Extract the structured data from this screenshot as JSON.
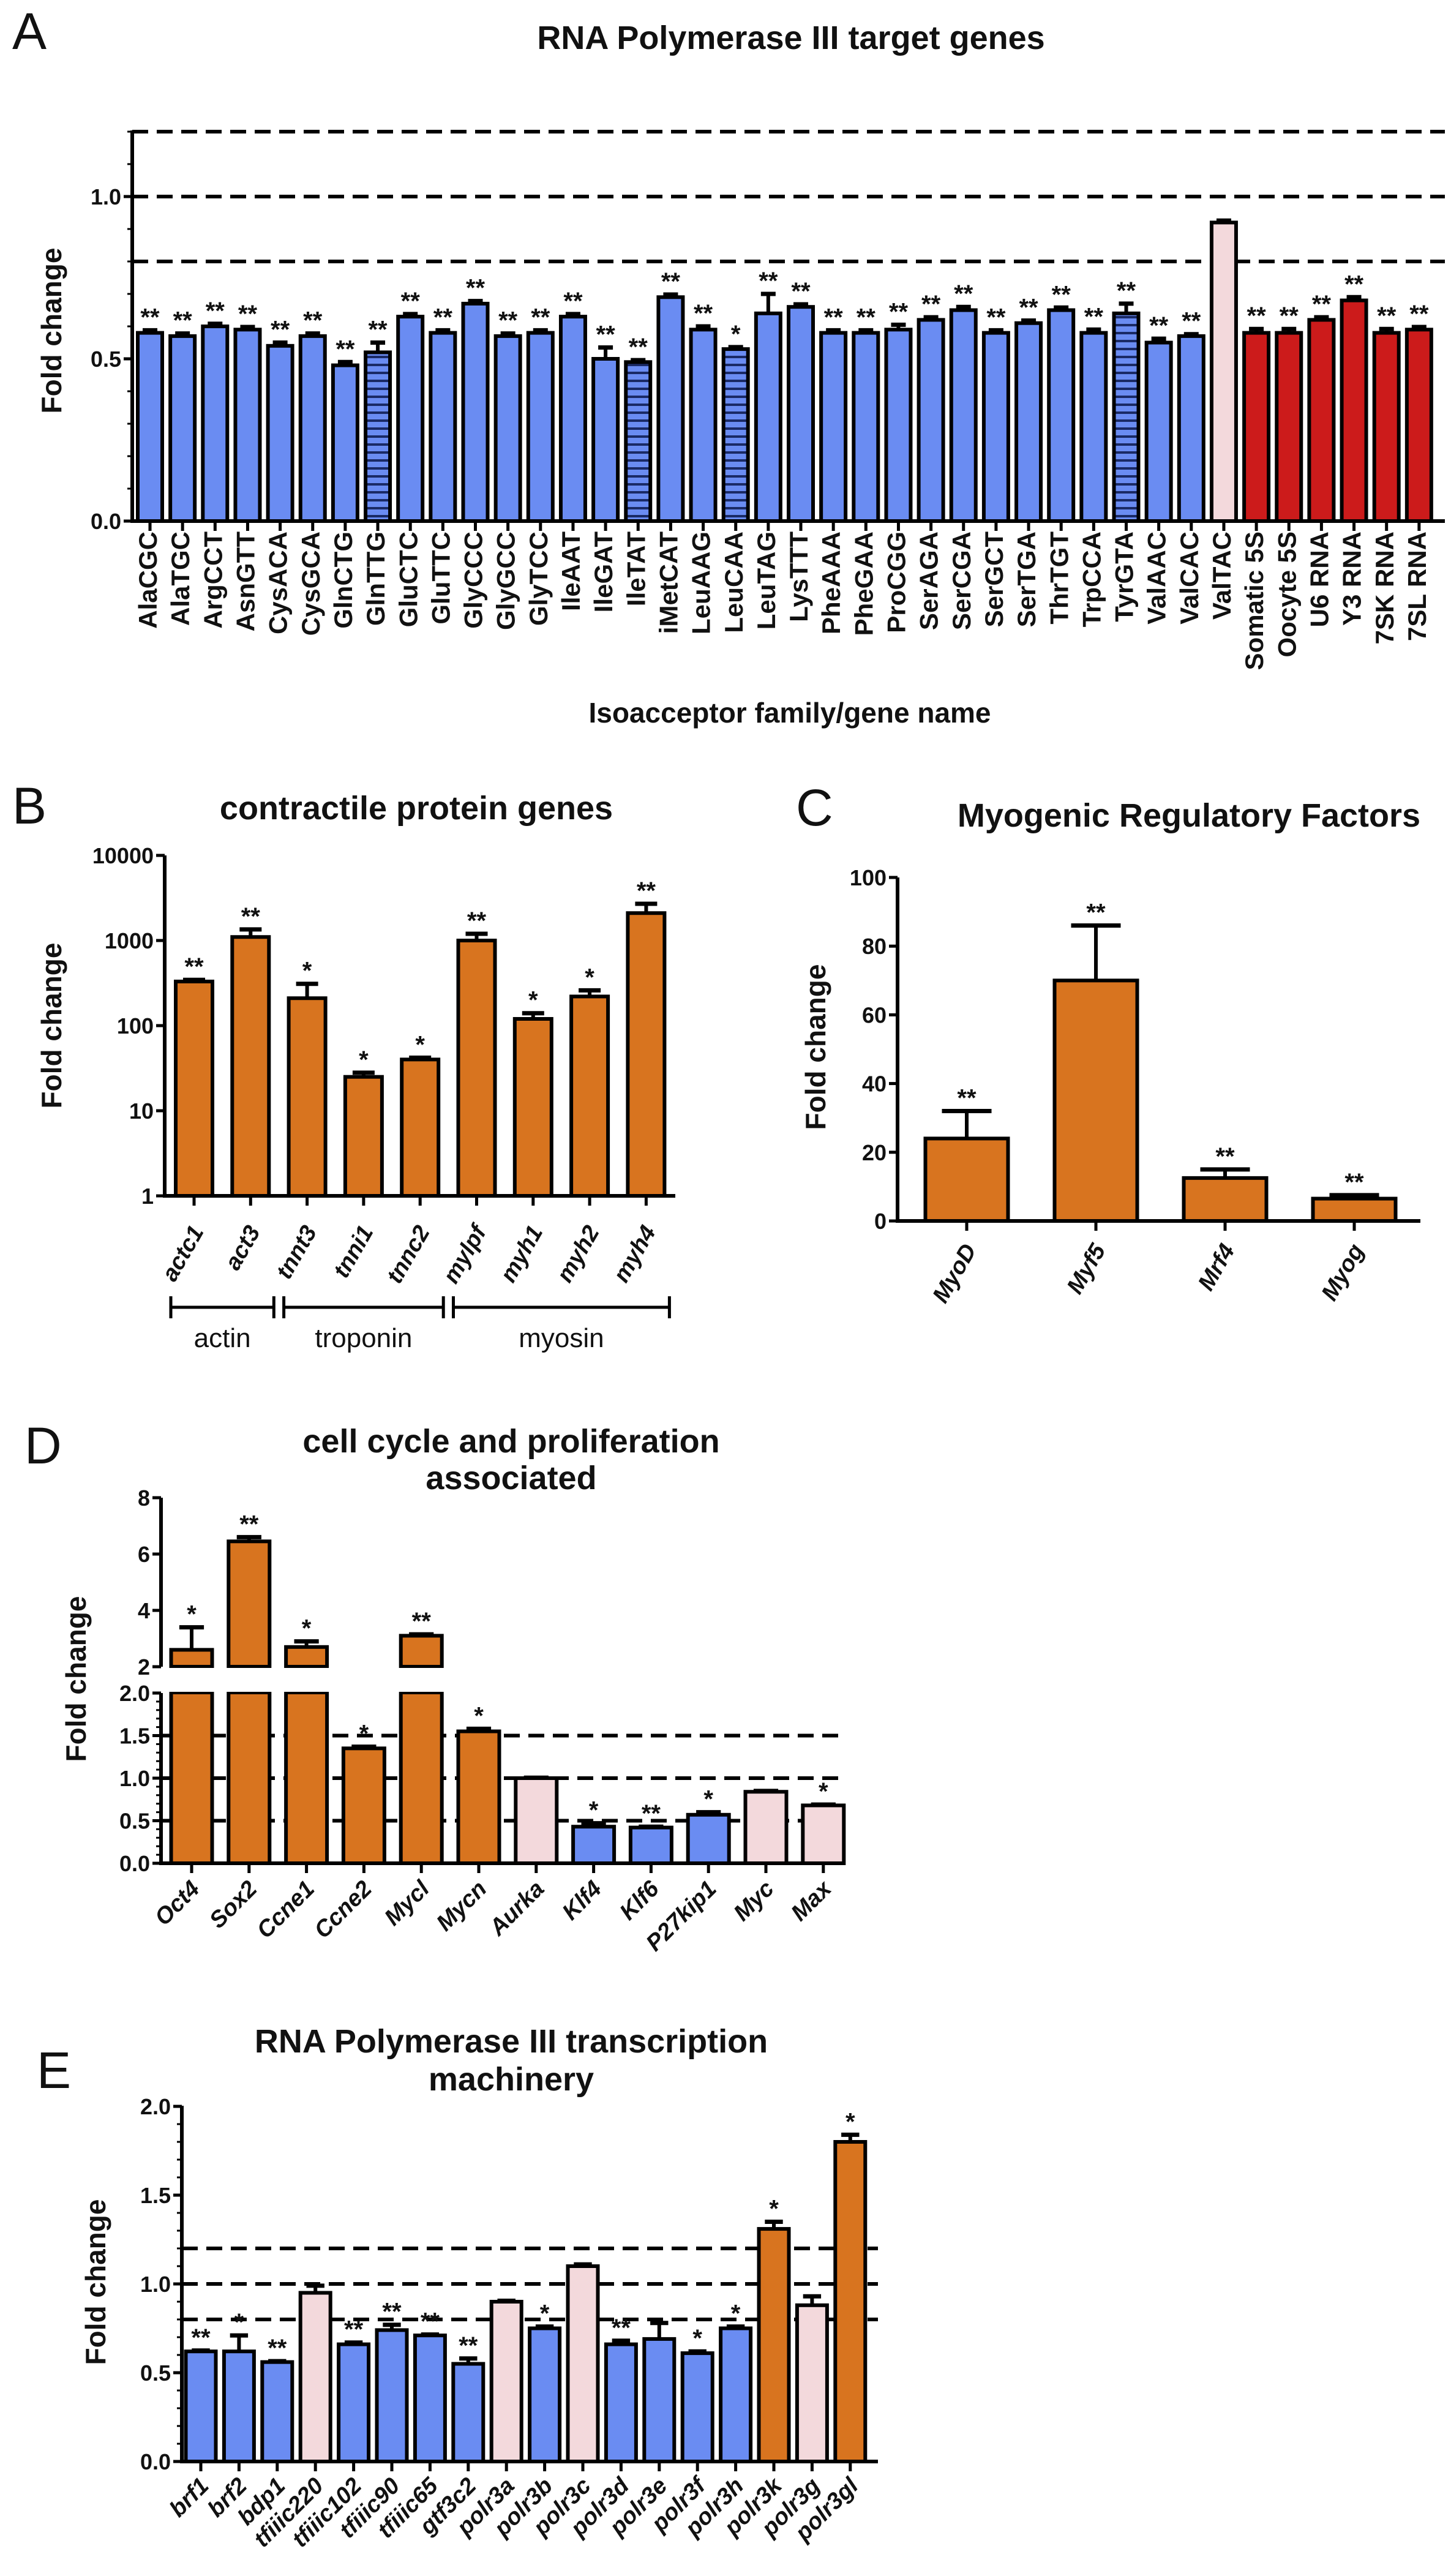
{
  "colors": {
    "blue": "#6a8cf2",
    "pink": "#f3d9dc",
    "red": "#cc1b1b",
    "orange": "#d8741f",
    "axis": "#000000"
  },
  "chart_data": [
    {
      "panel": "A",
      "type": "bar",
      "title": "RNA Polymerase III target genes",
      "xlabel": "Isoacceptor family/gene name",
      "ylabel": "Fold change",
      "yscale": "linear",
      "ylim": [
        0,
        1.2
      ],
      "yticks": [
        "0.0",
        "0.5",
        "1.0"
      ],
      "reference_lines": [
        0.8,
        1.0,
        1.2
      ],
      "grid": false,
      "categories": [
        "AlaCGC",
        "AlaTGC",
        "ArgCCT",
        "AsnGTT",
        "CysACA",
        "CysGCA",
        "GlnCTG",
        "GlnTTG",
        "GluCTC",
        "GluTTC",
        "GlyCCC",
        "GlyGCC",
        "GlyTCC",
        "IleAAT",
        "IleGAT",
        "IleTAT",
        "iMetCAT",
        "LeuAAG",
        "LeuCAA",
        "LeuTAG",
        "LysTTT",
        "PheAAA",
        "PheGAA",
        "ProCGG",
        "SerAGA",
        "SerCGA",
        "SerGCT",
        "SerTGA",
        "ThrTGT",
        "TrpCCA",
        "TyrGTA",
        "ValAAC",
        "ValCAC",
        "ValTAC",
        "Somatic 5S",
        "Oocyte 5S",
        "U6 RNA",
        "Y3 RNA",
        "7SK RNA",
        "7SL RNA"
      ],
      "values": [
        0.58,
        0.57,
        0.6,
        0.59,
        0.54,
        0.57,
        0.48,
        0.52,
        0.63,
        0.58,
        0.67,
        0.57,
        0.58,
        0.63,
        0.5,
        0.49,
        0.69,
        0.59,
        0.53,
        0.64,
        0.66,
        0.58,
        0.58,
        0.59,
        0.62,
        0.65,
        0.58,
        0.61,
        0.65,
        0.58,
        0.64,
        0.55,
        0.57,
        0.92,
        0.58,
        0.58,
        0.62,
        0.68,
        0.58,
        0.59
      ],
      "errors": [
        0.008,
        0.008,
        0.008,
        0.008,
        0.01,
        0.008,
        0.01,
        0.03,
        0.008,
        0.008,
        0.008,
        0.008,
        0.008,
        0.008,
        0.035,
        0.006,
        0.008,
        0.01,
        0.006,
        0.06,
        0.008,
        0.008,
        0.008,
        0.015,
        0.008,
        0.01,
        0.008,
        0.008,
        0.008,
        0.01,
        0.03,
        0.012,
        0.006,
        0.006,
        0.012,
        0.012,
        0.008,
        0.01,
        0.012,
        0.008
      ],
      "significance": [
        "**",
        "**",
        "**",
        "**",
        "**",
        "**",
        "**",
        "**",
        "**",
        "**",
        "**",
        "**",
        "**",
        "**",
        "**",
        "**",
        "**",
        "**",
        "*",
        "**",
        "**",
        "**",
        "**",
        "**",
        "**",
        "**",
        "**",
        "**",
        "**",
        "**",
        "**",
        "**",
        "**",
        "",
        "**",
        "**",
        "**",
        "**",
        "**",
        "**"
      ],
      "bar_colors": [
        "blue",
        "blue",
        "blue",
        "blue",
        "blue",
        "blue",
        "blue",
        "blue",
        "blue",
        "blue",
        "blue",
        "blue",
        "blue",
        "blue",
        "blue",
        "blue",
        "blue",
        "blue",
        "blue",
        "blue",
        "blue",
        "blue",
        "blue",
        "blue",
        "blue",
        "blue",
        "blue",
        "blue",
        "blue",
        "blue",
        "blue",
        "blue",
        "blue",
        "pink",
        "red",
        "red",
        "red",
        "red",
        "red",
        "red"
      ],
      "striped": [
        false,
        false,
        false,
        false,
        false,
        false,
        false,
        true,
        false,
        false,
        false,
        false,
        false,
        false,
        false,
        true,
        false,
        false,
        true,
        false,
        false,
        false,
        false,
        false,
        false,
        false,
        false,
        false,
        false,
        false,
        true,
        false,
        false,
        false,
        false,
        false,
        false,
        false,
        false,
        false
      ]
    },
    {
      "panel": "B",
      "type": "bar",
      "title": "contractile protein genes",
      "xlabel": "",
      "ylabel": "Fold change",
      "yscale": "log",
      "ylim": [
        1,
        10000
      ],
      "yticks": [
        "1",
        "10",
        "100",
        "1000",
        "10000"
      ],
      "reference_lines": [],
      "categories": [
        "actc1",
        "act3",
        "tnnt3",
        "tnni1",
        "tnnc2",
        "mylpf",
        "myh1",
        "myh2",
        "myh4"
      ],
      "values": [
        330,
        1100,
        210,
        25,
        40,
        1000,
        120,
        220,
        2100
      ],
      "errors": [
        15,
        250,
        100,
        3,
        2,
        200,
        20,
        40,
        600
      ],
      "significance": [
        "**",
        "**",
        "*",
        "*",
        "*",
        "**",
        "*",
        "*",
        "**"
      ],
      "bar_colors": [
        "orange",
        "orange",
        "orange",
        "orange",
        "orange",
        "orange",
        "orange",
        "orange",
        "orange"
      ],
      "groups": [
        {
          "label": "actin",
          "from": 0,
          "to": 1
        },
        {
          "label": "troponin",
          "from": 2,
          "to": 4
        },
        {
          "label": "myosin",
          "from": 5,
          "to": 8
        }
      ]
    },
    {
      "panel": "C",
      "type": "bar",
      "title": "Myogenic Regulatory Factors",
      "xlabel": "",
      "ylabel": "Fold change",
      "yscale": "linear",
      "ylim": [
        0,
        100
      ],
      "yticks": [
        "0",
        "20",
        "40",
        "60",
        "80",
        "100"
      ],
      "reference_lines": [],
      "categories": [
        "MyoD",
        "Myf5",
        "Mrf4",
        "Myog"
      ],
      "values": [
        24,
        70,
        12.5,
        6.5
      ],
      "errors": [
        8,
        16,
        2.5,
        1
      ],
      "significance": [
        "**",
        "**",
        "**",
        "**"
      ],
      "bar_colors": [
        "orange",
        "orange",
        "orange",
        "orange"
      ]
    },
    {
      "panel": "D",
      "type": "bar",
      "title": "cell cycle and proliferation",
      "title_line2": "associated",
      "xlabel": "",
      "ylabel": "Fold change",
      "yscale": "broken",
      "ylim": [
        0,
        8
      ],
      "axis_break": [
        2,
        2
      ],
      "yticks_upper": [
        "2",
        "4",
        "6",
        "8"
      ],
      "yticks_lower": [
        "0.0",
        "0.5",
        "1.0",
        "1.5",
        "2.0"
      ],
      "reference_lines": [
        0.5,
        1.0,
        1.5
      ],
      "categories": [
        "Oct4",
        "Sox2",
        "Ccne1",
        "Ccne2",
        "Mycl",
        "Mycn",
        "Aurka",
        "Klf4",
        "Klf6",
        "P27kip1",
        "Myc",
        "Max"
      ],
      "values": [
        2.6,
        6.45,
        2.7,
        1.35,
        3.1,
        1.55,
        1.0,
        0.43,
        0.42,
        0.57,
        0.84,
        0.68
      ],
      "errors": [
        0.8,
        0.15,
        0.2,
        0.02,
        0.05,
        0.03,
        0.005,
        0.04,
        0.01,
        0.03,
        0.01,
        0.01
      ],
      "significance": [
        "*",
        "**",
        "*",
        "*",
        "**",
        "*",
        "",
        "*",
        "**",
        "*",
        "",
        "*"
      ],
      "bar_colors": [
        "orange",
        "orange",
        "orange",
        "orange",
        "orange",
        "orange",
        "pink",
        "blue",
        "blue",
        "blue",
        "pink",
        "pink"
      ]
    },
    {
      "panel": "E",
      "type": "bar",
      "title": "RNA Polymerase III transcription",
      "title_line2": "machinery",
      "xlabel": "",
      "ylabel": "Fold change",
      "yscale": "linear",
      "ylim": [
        0,
        2.0
      ],
      "yticks": [
        "0.0",
        "0.5",
        "1.0",
        "1.5",
        "2.0"
      ],
      "reference_lines": [
        0.8,
        1.0,
        1.2
      ],
      "categories": [
        "brf1",
        "brf2",
        "bdp1",
        "tfiiic220",
        "tfiiic102",
        "tfiiic90",
        "tfiiic65",
        "gtf3c2",
        "polr3a",
        "polr3b",
        "polr3c",
        "polr3d",
        "polr3e",
        "polr3f",
        "polr3h",
        "polr3k",
        "polr3g",
        "polr3gl"
      ],
      "values": [
        0.62,
        0.62,
        0.56,
        0.95,
        0.66,
        0.74,
        0.71,
        0.55,
        0.9,
        0.75,
        1.1,
        0.66,
        0.69,
        0.61,
        0.75,
        1.31,
        0.88,
        1.8
      ],
      "errors": [
        0.005,
        0.09,
        0.005,
        0.04,
        0.01,
        0.03,
        0.005,
        0.03,
        0.005,
        0.01,
        0.01,
        0.02,
        0.09,
        0.01,
        0.01,
        0.04,
        0.05,
        0.04
      ],
      "significance": [
        "**",
        "*",
        "**",
        "",
        "**",
        "**",
        "**",
        "**",
        "",
        "*",
        "",
        "**",
        "",
        "*",
        "*",
        "*",
        "",
        "*"
      ],
      "bar_colors": [
        "blue",
        "blue",
        "blue",
        "pink",
        "blue",
        "blue",
        "blue",
        "blue",
        "pink",
        "blue",
        "pink",
        "blue",
        "blue",
        "blue",
        "blue",
        "orange",
        "pink",
        "orange"
      ]
    }
  ]
}
